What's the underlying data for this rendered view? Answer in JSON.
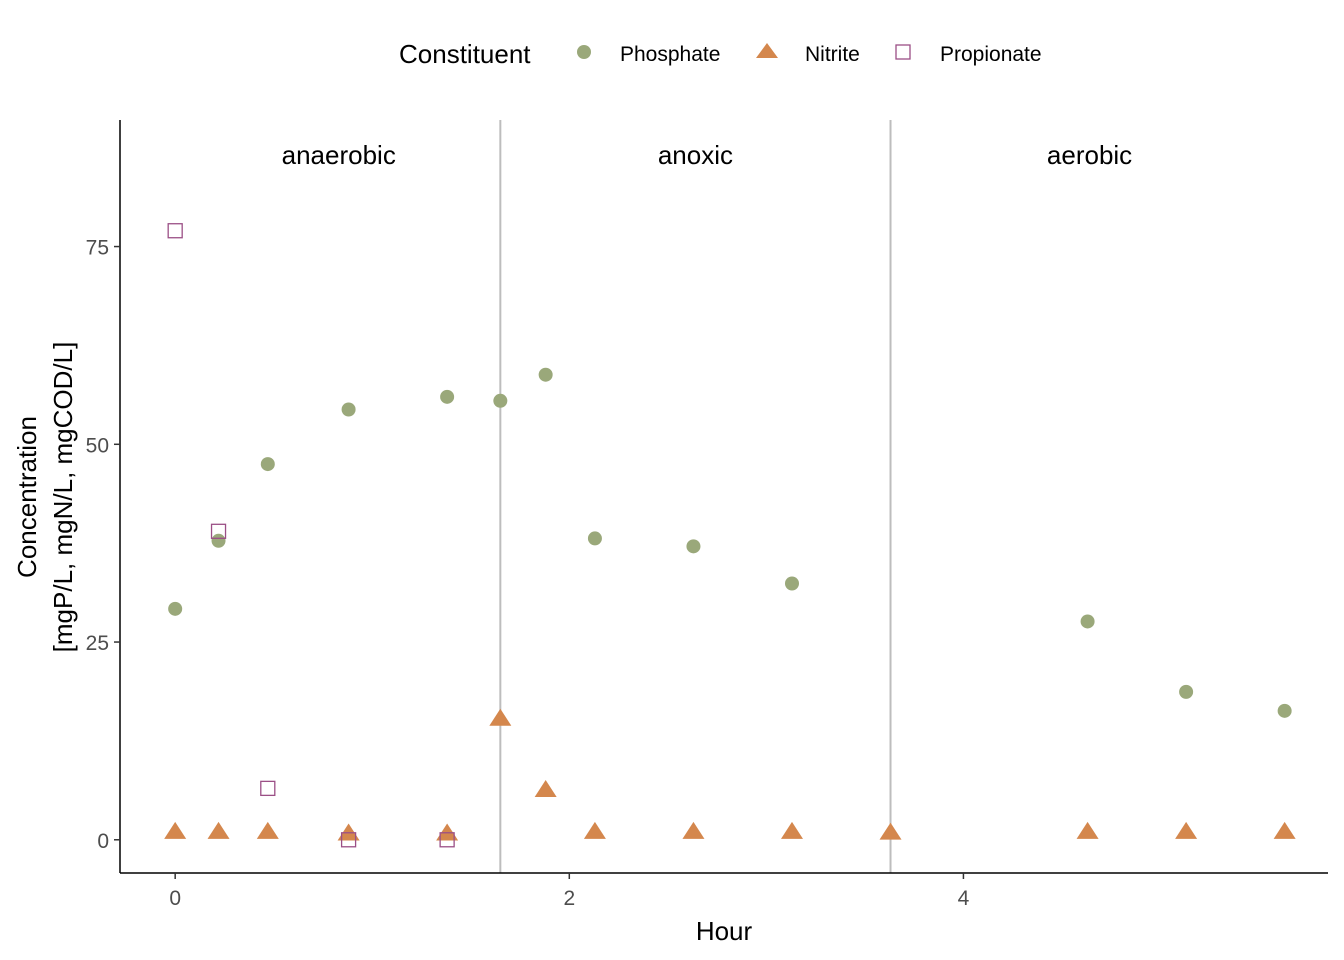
{
  "legend": {
    "title": "Constituent",
    "items": [
      {
        "label": "Phosphate",
        "shape": "circle",
        "color": "#9aa87a"
      },
      {
        "label": "Nitrite",
        "shape": "triangle",
        "color": "#d4874d"
      },
      {
        "label": "Propionate",
        "shape": "open-square",
        "color": "#9b4f86"
      }
    ]
  },
  "chart_data": {
    "type": "scatter",
    "xlabel": "Hour",
    "ylabel_lines": [
      "Concentration",
      "[mgP/L, mgN/L, mgCOD/L]"
    ],
    "xlim": [
      -0.28,
      5.85
    ],
    "ylim": [
      -4.2,
      91
    ],
    "x_ticks": [
      0,
      2,
      4
    ],
    "y_ticks": [
      0,
      25,
      50,
      75
    ],
    "grid": false,
    "legend_position": "top",
    "phase_boundaries": [
      1.65,
      3.63
    ],
    "phases": [
      {
        "label": "anaerobic",
        "x": 0.83
      },
      {
        "label": "anoxic",
        "x": 2.64
      },
      {
        "label": "aerobic",
        "x": 4.64
      }
    ],
    "series": [
      {
        "name": "Phosphate",
        "color": "#9aa87a",
        "shape": "circle",
        "points": [
          [
            0,
            29.2
          ],
          [
            0.22,
            37.8
          ],
          [
            0.47,
            47.5
          ],
          [
            0.88,
            54.4
          ],
          [
            1.38,
            56.0
          ],
          [
            1.65,
            55.5
          ],
          [
            1.88,
            58.8
          ],
          [
            2.13,
            38.1
          ],
          [
            2.63,
            37.1
          ],
          [
            3.13,
            32.4
          ],
          [
            4.63,
            27.6
          ],
          [
            5.13,
            18.7
          ],
          [
            5.63,
            16.3
          ]
        ]
      },
      {
        "name": "Nitrite",
        "color": "#d4874d",
        "shape": "triangle",
        "points": [
          [
            0,
            1.0
          ],
          [
            0.22,
            1.0
          ],
          [
            0.47,
            1.0
          ],
          [
            0.88,
            0.8
          ],
          [
            1.38,
            0.8
          ],
          [
            1.65,
            15.3
          ],
          [
            1.88,
            6.3
          ],
          [
            2.13,
            1.0
          ],
          [
            2.63,
            1.0
          ],
          [
            3.13,
            1.0
          ],
          [
            3.63,
            0.9
          ],
          [
            4.63,
            1.0
          ],
          [
            5.13,
            1.0
          ],
          [
            5.63,
            1.0
          ]
        ]
      },
      {
        "name": "Propionate",
        "color": "#9b4f86",
        "shape": "open-square",
        "points": [
          [
            0,
            77.0
          ],
          [
            0.22,
            39.0
          ],
          [
            0.47,
            6.5
          ],
          [
            0.88,
            0.0
          ],
          [
            1.38,
            0.0
          ]
        ]
      }
    ]
  }
}
